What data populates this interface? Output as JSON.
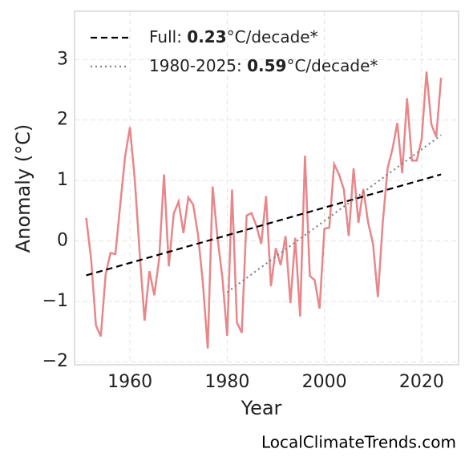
{
  "chart_data": {
    "type": "line",
    "xlabel": "Year",
    "ylabel": "Anomaly (°C)",
    "source": "LocalClimateTrends.com",
    "x": [
      1951,
      1952,
      1953,
      1954,
      1955,
      1956,
      1957,
      1958,
      1959,
      1960,
      1961,
      1962,
      1963,
      1964,
      1965,
      1966,
      1967,
      1968,
      1969,
      1970,
      1971,
      1972,
      1973,
      1974,
      1975,
      1976,
      1977,
      1978,
      1979,
      1980,
      1981,
      1982,
      1983,
      1984,
      1985,
      1986,
      1987,
      1988,
      1989,
      1990,
      1991,
      1992,
      1993,
      1994,
      1995,
      1996,
      1997,
      1998,
      1999,
      2000,
      2001,
      2002,
      2003,
      2004,
      2005,
      2006,
      2007,
      2008,
      2009,
      2010,
      2011,
      2012,
      2013,
      2014,
      2015,
      2016,
      2017,
      2018,
      2019,
      2020,
      2021,
      2022,
      2023,
      2024
    ],
    "series": [
      {
        "color": "#e8868a",
        "values": [
          0.38,
          -0.3,
          -1.4,
          -1.58,
          -0.55,
          -0.2,
          -0.22,
          0.6,
          1.4,
          1.88,
          1.0,
          -0.2,
          -1.32,
          -0.5,
          -0.9,
          -0.3,
          1.1,
          -0.42,
          0.45,
          0.65,
          0.13,
          0.72,
          0.6,
          0.1,
          -0.7,
          -1.78,
          0.9,
          0.05,
          -0.6,
          -1.57,
          0.85,
          -1.35,
          -1.52,
          0.42,
          0.46,
          0.25,
          -0.05,
          0.74,
          -0.75,
          -0.12,
          -0.4,
          0.08,
          -1.03,
          0.05,
          -1.25,
          1.41,
          -0.58,
          -0.65,
          -1.12,
          0.2,
          0.22,
          1.27,
          1.1,
          0.85,
          0.08,
          1.2,
          0.3,
          0.86,
          0.3,
          -0.05,
          -0.93,
          0.3,
          1.2,
          1.52,
          1.95,
          1.12,
          2.36,
          1.33,
          1.33,
          1.68,
          2.8,
          1.93,
          1.72,
          2.7
        ]
      }
    ],
    "trends": [
      {
        "name": [
          "Full: ",
          "0.23",
          "°C/decade*"
        ],
        "color": "#000000",
        "style": "dashed",
        "x": [
          1951,
          2024
        ],
        "values": [
          -0.57,
          1.1
        ]
      },
      {
        "name": [
          "1980-2025: ",
          "0.59",
          "°C/decade*"
        ],
        "color": "#808080",
        "style": "dotted",
        "x": [
          1980,
          2024
        ],
        "values": [
          -0.85,
          1.75
        ]
      }
    ],
    "xlim": [
      1948.6,
      2027.6
    ],
    "ylim": [
      -2.05,
      3.8
    ],
    "xticks": [
      1960,
      1980,
      2000,
      2020
    ],
    "yticks": [
      {
        "value": -2,
        "label": "−2"
      },
      {
        "value": -1,
        "label": "−1"
      },
      0,
      1,
      2,
      3
    ],
    "grid": true,
    "legend": "upper left"
  }
}
